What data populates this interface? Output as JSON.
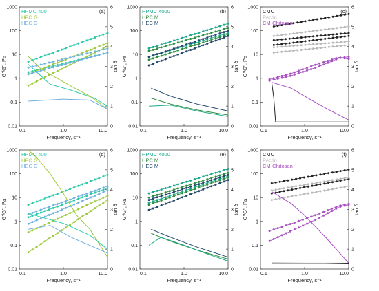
{
  "colors": {
    "teal": "#2bc9a8",
    "olive": "#9ec93a",
    "sky": "#6fb0e0",
    "teal_dark": "#1aa98a",
    "green": "#2e8b3e",
    "navy": "#23466a",
    "black": "#222222",
    "gray": "#b8b8b8",
    "purple": "#a64fc0"
  },
  "chart_data": [
    {
      "type": "line",
      "panel_label": "(a)",
      "xlabel": "Frequency, s⁻¹",
      "ylabel": "G'/G'', Pa",
      "y2label": "tan δ",
      "x_scale": "log",
      "xlim": [
        0.1,
        10
      ],
      "x_ticks": [
        "0.1",
        "1.0",
        "10.0"
      ],
      "y_scale": "log",
      "ylim": [
        0.01,
        1000
      ],
      "y_ticks": [
        "0.01",
        "0.1",
        "1",
        "10",
        "100",
        "1000"
      ],
      "y2lim": [
        0,
        6
      ],
      "y2_ticks": [
        "0",
        "1",
        "2",
        "3",
        "4",
        "5",
        "6"
      ],
      "legend": [
        "HPMC 400",
        "HPC G",
        "HEC G"
      ],
      "legend_colors": [
        "teal",
        "olive",
        "sky"
      ],
      "legend_position": "top-left",
      "series": [
        {
          "color": "teal",
          "axis": "left",
          "marker": true,
          "x": [
            0.16,
            10
          ],
          "y": [
            5,
            80
          ]
        },
        {
          "color": "teal",
          "axis": "left",
          "marker": true,
          "x": [
            0.16,
            10
          ],
          "y": [
            1.8,
            12
          ]
        },
        {
          "color": "olive",
          "axis": "left",
          "marker": true,
          "x": [
            0.16,
            10
          ],
          "y": [
            0.5,
            22
          ]
        },
        {
          "color": "olive",
          "axis": "left",
          "marker": true,
          "x": [
            0.16,
            10
          ],
          "y": [
            1.5,
            30
          ]
        },
        {
          "color": "sky",
          "axis": "left",
          "marker": true,
          "x": [
            0.16,
            10
          ],
          "y": [
            2.8,
            18
          ]
        },
        {
          "color": "sky",
          "axis": "left",
          "marker": true,
          "x": [
            0.16,
            10
          ],
          "y": [
            1.5,
            12
          ]
        },
        {
          "color": "teal",
          "axis": "right",
          "marker": false,
          "x": [
            0.16,
            0.5,
            1.5,
            5,
            10
          ],
          "y": [
            3.1,
            2.1,
            1.8,
            1.4,
            1.0
          ]
        },
        {
          "color": "olive",
          "axis": "right",
          "marker": false,
          "x": [
            0.16,
            0.3,
            0.6,
            1.5,
            4,
            10
          ],
          "y": [
            3.5,
            2.9,
            2.5,
            2.0,
            1.5,
            0.85
          ]
        },
        {
          "color": "sky",
          "axis": "right",
          "marker": false,
          "x": [
            0.16,
            1,
            4,
            10
          ],
          "y": [
            1.25,
            1.35,
            1.3,
            0.85
          ]
        }
      ]
    },
    {
      "type": "line",
      "panel_label": "(b)",
      "xlabel": "Frequency, s⁻¹",
      "ylabel": "G'/G'', Pa",
      "y2label": "tan δ",
      "x_scale": "log",
      "xlim": [
        0.1,
        10
      ],
      "x_ticks": [
        "0.1",
        "1.0",
        "10.0"
      ],
      "y_scale": "log",
      "ylim": [
        0.01,
        1000
      ],
      "y_ticks": [
        "0.01",
        "0.1",
        "1",
        "10",
        "100",
        "1000"
      ],
      "y2lim": [
        0,
        6
      ],
      "y2_ticks": [
        "0",
        "1",
        "2",
        "3",
        "4",
        "5",
        "6"
      ],
      "legend": [
        "HPMC 4000",
        "HPC M",
        "HEC M"
      ],
      "legend_colors": [
        "teal_dark",
        "green",
        "navy"
      ],
      "legend_position": "top-left",
      "series": [
        {
          "color": "teal_dark",
          "axis": "left",
          "marker": true,
          "x": [
            0.16,
            10
          ],
          "y": [
            18,
            200
          ]
        },
        {
          "color": "teal_dark",
          "axis": "left",
          "marker": true,
          "x": [
            0.16,
            10
          ],
          "y": [
            8,
            80
          ]
        },
        {
          "color": "green",
          "axis": "left",
          "marker": true,
          "x": [
            0.16,
            10
          ],
          "y": [
            14,
            130
          ]
        },
        {
          "color": "green",
          "axis": "left",
          "marker": true,
          "x": [
            0.16,
            10
          ],
          "y": [
            6,
            70
          ]
        },
        {
          "color": "navy",
          "axis": "left",
          "marker": true,
          "x": [
            0.16,
            10
          ],
          "y": [
            8,
            100
          ]
        },
        {
          "color": "navy",
          "axis": "left",
          "marker": true,
          "x": [
            0.16,
            10
          ],
          "y": [
            3.5,
            60
          ]
        },
        {
          "color": "navy",
          "axis": "right",
          "marker": false,
          "x": [
            0.18,
            0.5,
            2,
            10
          ],
          "y": [
            1.9,
            1.5,
            1.1,
            0.75
          ]
        },
        {
          "color": "green",
          "axis": "right",
          "marker": false,
          "x": [
            0.18,
            0.5,
            2,
            10
          ],
          "y": [
            1.4,
            1.1,
            0.8,
            0.55
          ]
        },
        {
          "color": "teal_dark",
          "axis": "right",
          "marker": false,
          "x": [
            0.16,
            0.5,
            2,
            10
          ],
          "y": [
            1.0,
            1.05,
            0.75,
            0.48
          ]
        }
      ]
    },
    {
      "type": "line",
      "panel_label": "(c)",
      "xlabel": "Frequency, s⁻¹",
      "ylabel": "G'/G'', Pa",
      "y2label": "tan δ",
      "x_scale": "log",
      "xlim": [
        0.1,
        10
      ],
      "x_ticks": [
        "0.1",
        "1.0",
        "10.0"
      ],
      "y_scale": "log",
      "ylim": [
        0.01,
        1000
      ],
      "y_ticks": [
        "0.01",
        "0.1",
        "1",
        "10",
        "100",
        "1000"
      ],
      "y2lim": [
        0,
        6
      ],
      "y2_ticks": [
        "0",
        "1",
        "2",
        "3",
        "4",
        "5",
        "6"
      ],
      "legend": [
        "CMC",
        "Pectin",
        "CM-Chitosan"
      ],
      "legend_colors": [
        "black",
        "gray",
        "purple"
      ],
      "legend_position": "top-left",
      "series": [
        {
          "color": "black",
          "axis": "left",
          "marker": true,
          "x": [
            0.2,
            10
          ],
          "y": [
            150,
            500
          ]
        },
        {
          "color": "black",
          "axis": "left",
          "marker": true,
          "x": [
            0.2,
            10
          ],
          "y": [
            40,
            80
          ]
        },
        {
          "color": "black",
          "axis": "left",
          "marker": true,
          "x": [
            0.2,
            10
          ],
          "y": [
            25,
            60
          ]
        },
        {
          "color": "gray",
          "axis": "left",
          "marker": true,
          "x": [
            0.2,
            10
          ],
          "y": [
            60,
            150
          ]
        },
        {
          "color": "gray",
          "axis": "left",
          "marker": true,
          "x": [
            0.2,
            10
          ],
          "y": [
            20,
            35
          ]
        },
        {
          "color": "gray",
          "axis": "left",
          "marker": true,
          "x": [
            0.2,
            10
          ],
          "y": [
            12,
            25
          ]
        },
        {
          "color": "purple",
          "axis": "left",
          "marker": true,
          "x": [
            0.16,
            0.5,
            2,
            6,
            10
          ],
          "y": [
            0.8,
            1.3,
            3,
            7,
            8
          ]
        },
        {
          "color": "purple",
          "axis": "left",
          "marker": true,
          "x": [
            0.16,
            0.5,
            2,
            6,
            10
          ],
          "y": [
            0.9,
            1.6,
            4,
            7.5,
            6.5
          ]
        },
        {
          "color": "black",
          "axis": "right",
          "marker": false,
          "x": [
            0.18,
            0.2,
            0.22,
            10
          ],
          "y": [
            2.2,
            1.4,
            0.2,
            0.2
          ]
        },
        {
          "color": "purple",
          "axis": "right",
          "marker": false,
          "x": [
            0.18,
            0.5,
            1,
            3,
            10
          ],
          "y": [
            2.2,
            1.9,
            1.5,
            0.9,
            0.3
          ]
        }
      ]
    },
    {
      "type": "line",
      "panel_label": "(d)",
      "xlabel": "Frequency, s⁻¹",
      "ylabel": "G'/G'', Pa",
      "y2label": "tan δ",
      "x_scale": "log",
      "xlim": [
        0.1,
        10
      ],
      "x_ticks": [
        "0.1",
        "1.0",
        "10.0"
      ],
      "y_scale": "log",
      "ylim": [
        0.01,
        1000
      ],
      "y_ticks": [
        "0.01",
        "0.1",
        "1",
        "10",
        "100",
        "1000"
      ],
      "y2lim": [
        0,
        6
      ],
      "y2_ticks": [
        "0",
        "1",
        "2",
        "3",
        "4",
        "5",
        "6"
      ],
      "legend": [
        "HPMC 400",
        "HPC G",
        "HEC G"
      ],
      "legend_colors": [
        "teal",
        "olive",
        "sky"
      ],
      "legend_position": "top-left",
      "series": [
        {
          "color": "teal",
          "axis": "left",
          "marker": true,
          "x": [
            0.16,
            10
          ],
          "y": [
            5,
            90
          ]
        },
        {
          "color": "teal",
          "axis": "left",
          "marker": true,
          "x": [
            0.16,
            10
          ],
          "y": [
            1.5,
            25
          ]
        },
        {
          "color": "sky",
          "axis": "left",
          "marker": true,
          "x": [
            0.16,
            10
          ],
          "y": [
            2,
            30
          ]
        },
        {
          "color": "sky",
          "axis": "left",
          "marker": true,
          "x": [
            0.16,
            10
          ],
          "y": [
            0.8,
            20
          ]
        },
        {
          "color": "olive",
          "axis": "left",
          "marker": true,
          "x": [
            0.16,
            10
          ],
          "y": [
            0.35,
            12
          ]
        },
        {
          "color": "olive",
          "axis": "left",
          "marker": true,
          "x": [
            0.16,
            10
          ],
          "y": [
            0.05,
            8
          ]
        },
        {
          "color": "olive",
          "axis": "right",
          "marker": false,
          "x": [
            0.16,
            0.25,
            0.5,
            1,
            2,
            4,
            10
          ],
          "y": [
            6,
            5.6,
            4.8,
            3.8,
            2.7,
            2.0,
            0.6
          ]
        },
        {
          "color": "teal",
          "axis": "right",
          "marker": false,
          "x": [
            0.16,
            1,
            4,
            10
          ],
          "y": [
            2.8,
            2.3,
            1.7,
            1.0
          ]
        },
        {
          "color": "sky",
          "axis": "right",
          "marker": false,
          "x": [
            0.16,
            0.5,
            1.5,
            10
          ],
          "y": [
            2.0,
            2.2,
            1.6,
            0.8
          ]
        }
      ]
    },
    {
      "type": "line",
      "panel_label": "(e)",
      "xlabel": "Frequency, s⁻¹",
      "ylabel": "G'/G'', Pa",
      "y2label": "tan δ",
      "x_scale": "log",
      "xlim": [
        0.1,
        10
      ],
      "x_ticks": [
        "0.1",
        "1.0",
        "10.0"
      ],
      "y_scale": "log",
      "ylim": [
        0.01,
        1000
      ],
      "y_ticks": [
        "0.01",
        "0.1",
        "1",
        "10",
        "100",
        "1000"
      ],
      "y2lim": [
        0,
        6
      ],
      "y2_ticks": [
        "0",
        "1",
        "2",
        "3",
        "4",
        "5",
        "6"
      ],
      "legend": [
        "HPMC 4000",
        "HPC M",
        "HEC M"
      ],
      "legend_colors": [
        "teal_dark",
        "green",
        "navy"
      ],
      "legend_position": "top-left",
      "series": [
        {
          "color": "teal_dark",
          "axis": "left",
          "marker": true,
          "x": [
            0.16,
            10
          ],
          "y": [
            15,
            160
          ]
        },
        {
          "color": "teal_dark",
          "axis": "left",
          "marker": true,
          "x": [
            0.16,
            10
          ],
          "y": [
            6,
            80
          ]
        },
        {
          "color": "green",
          "axis": "left",
          "marker": true,
          "x": [
            0.16,
            10
          ],
          "y": [
            10,
            110
          ]
        },
        {
          "color": "green",
          "axis": "left",
          "marker": true,
          "x": [
            0.16,
            10
          ],
          "y": [
            5,
            70
          ]
        },
        {
          "color": "navy",
          "axis": "left",
          "marker": true,
          "x": [
            0.16,
            10
          ],
          "y": [
            8,
            90
          ]
        },
        {
          "color": "navy",
          "axis": "left",
          "marker": true,
          "x": [
            0.16,
            10
          ],
          "y": [
            3,
            55
          ]
        },
        {
          "color": "navy",
          "axis": "right",
          "marker": false,
          "x": [
            0.18,
            0.5,
            2,
            10
          ],
          "y": [
            2.0,
            1.6,
            1.1,
            0.6
          ]
        },
        {
          "color": "green",
          "axis": "right",
          "marker": false,
          "x": [
            0.18,
            0.5,
            2,
            10
          ],
          "y": [
            1.8,
            1.4,
            0.95,
            0.5
          ]
        },
        {
          "color": "teal_dark",
          "axis": "right",
          "marker": false,
          "x": [
            0.16,
            0.3,
            1,
            3,
            10
          ],
          "y": [
            1.2,
            1.6,
            1.2,
            0.8,
            0.4
          ]
        }
      ]
    },
    {
      "type": "line",
      "panel_label": "(f)",
      "xlabel": "Frequency, s⁻¹",
      "ylabel": "G'/G'', Pa",
      "y2label": "tan δ",
      "x_scale": "log",
      "xlim": [
        0.1,
        10
      ],
      "x_ticks": [
        "0.1",
        "1.0",
        "10.0"
      ],
      "y_scale": "log",
      "ylim": [
        0.01,
        1000
      ],
      "y_ticks": [
        "0.01",
        "0.1",
        "1",
        "10",
        "100",
        "1000"
      ],
      "y2lim": [
        0,
        6
      ],
      "y2_ticks": [
        "0",
        "1",
        "2",
        "3",
        "4",
        "5",
        "6"
      ],
      "legend": [
        "CMC",
        "Pectin",
        "CM-Chitosan"
      ],
      "legend_colors": [
        "black",
        "gray",
        "purple"
      ],
      "legend_position": "top-left",
      "series": [
        {
          "color": "black",
          "axis": "left",
          "marker": true,
          "x": [
            0.18,
            10
          ],
          "y": [
            40,
            150
          ]
        },
        {
          "color": "black",
          "axis": "left",
          "marker": true,
          "x": [
            0.18,
            10
          ],
          "y": [
            15,
            60
          ]
        },
        {
          "color": "gray",
          "axis": "left",
          "marker": true,
          "x": [
            0.18,
            10
          ],
          "y": [
            20,
            70
          ]
        },
        {
          "color": "gray",
          "axis": "left",
          "marker": true,
          "x": [
            0.18,
            10
          ],
          "y": [
            8,
            30
          ]
        },
        {
          "color": "purple",
          "axis": "left",
          "marker": true,
          "x": [
            0.16,
            0.5,
            2,
            6,
            10
          ],
          "y": [
            0.4,
            0.8,
            2,
            4.5,
            5.5
          ]
        },
        {
          "color": "purple",
          "axis": "left",
          "marker": true,
          "x": [
            0.16,
            0.5,
            2,
            6,
            10
          ],
          "y": [
            0.15,
            0.4,
            1.3,
            4,
            5
          ]
        },
        {
          "color": "black",
          "axis": "right",
          "marker": false,
          "x": [
            0.18,
            1,
            3,
            10
          ],
          "y": [
            0.28,
            0.28,
            0.28,
            0.26
          ]
        },
        {
          "color": "gray",
          "axis": "right",
          "marker": false,
          "x": [
            0.18,
            1,
            10
          ],
          "y": [
            0.32,
            0.3,
            0.3
          ]
        },
        {
          "color": "purple",
          "axis": "right",
          "marker": false,
          "x": [
            0.18,
            0.5,
            1,
            3,
            10
          ],
          "y": [
            3.9,
            3.3,
            2.7,
            1.6,
            0.3
          ]
        }
      ]
    }
  ]
}
